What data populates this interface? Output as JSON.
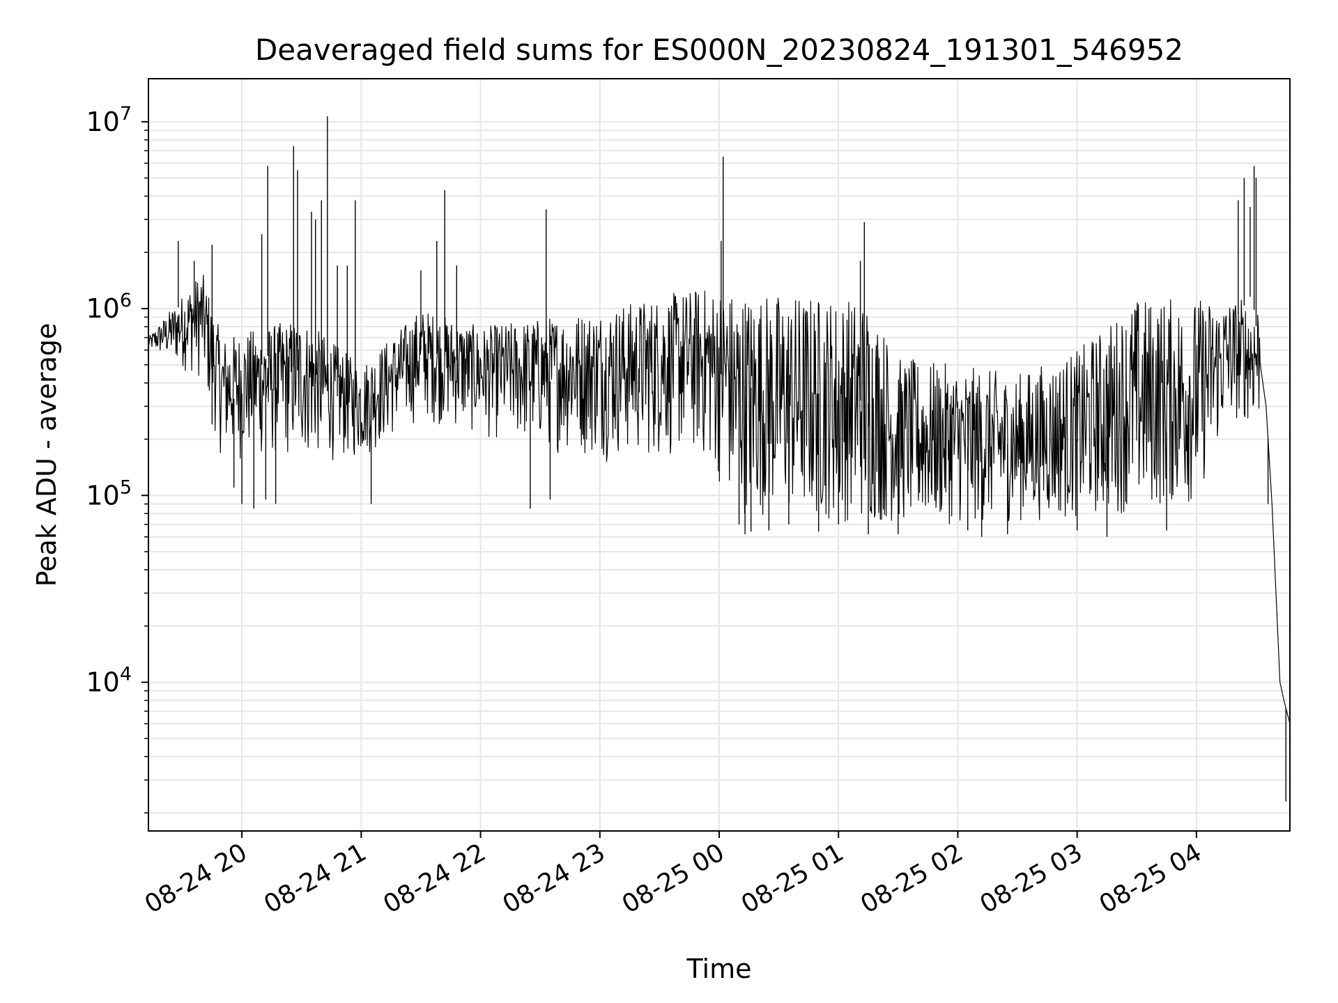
{
  "chart_data": {
    "type": "line",
    "title": "Deaveraged field sums for ES000N_20230824_191301_546952",
    "xlabel": "Time",
    "ylabel": "Peak ADU - average",
    "yscale": "log",
    "ylim": [
      1600,
      17000000
    ],
    "xlim": [
      "2023-08-24 19:13",
      "2023-08-25 04:47"
    ],
    "grid": true,
    "line_color": "#000000",
    "grid_color": "#e6e6e6",
    "x_ticks": [
      {
        "time": "2023-08-24 20:00",
        "label": "08-24 20"
      },
      {
        "time": "2023-08-24 21:00",
        "label": "08-24 21"
      },
      {
        "time": "2023-08-24 22:00",
        "label": "08-24 22"
      },
      {
        "time": "2023-08-24 23:00",
        "label": "08-24 23"
      },
      {
        "time": "2023-08-25 00:00",
        "label": "08-25 00"
      },
      {
        "time": "2023-08-25 01:00",
        "label": "08-25 01"
      },
      {
        "time": "2023-08-25 02:00",
        "label": "08-25 02"
      },
      {
        "time": "2023-08-25 03:00",
        "label": "08-25 03"
      },
      {
        "time": "2023-08-25 04:00",
        "label": "08-25 04"
      }
    ],
    "y_ticks": [
      {
        "value": 10000,
        "base": "10",
        "exp": "4"
      },
      {
        "value": 100000,
        "base": "10",
        "exp": "5"
      },
      {
        "value": 1000000,
        "base": "10",
        "exp": "6"
      },
      {
        "value": 10000000,
        "base": "10",
        "exp": "7"
      }
    ],
    "series": [
      {
        "values": [
          [
            "2023-08-24 19:13",
            650000
          ],
          [
            "2023-08-24 19:20",
            720000
          ],
          [
            "2023-08-24 19:25",
            900000
          ],
          [
            "2023-08-24 19:30",
            1100000
          ],
          [
            "2023-08-24 19:35",
            1000000
          ],
          [
            "2023-08-24 19:40",
            800000
          ],
          [
            "2023-08-24 19:45",
            500000
          ],
          [
            "2023-08-24 19:50",
            300000
          ],
          [
            "2023-08-24 20:00",
            350000
          ],
          [
            "2023-08-24 20:15",
            600000
          ],
          [
            "2023-08-24 20:30",
            450000
          ],
          [
            "2023-08-24 20:45",
            350000
          ],
          [
            "2023-08-24 21:00",
            300000
          ],
          [
            "2023-08-24 21:15",
            450000
          ],
          [
            "2023-08-24 21:30",
            600000
          ],
          [
            "2023-08-24 21:45",
            550000
          ],
          [
            "2023-08-24 22:00",
            450000
          ],
          [
            "2023-08-24 22:30",
            400000
          ],
          [
            "2023-08-24 23:00",
            450000
          ],
          [
            "2023-08-24 23:30",
            550000
          ],
          [
            "2023-08-24 23:50",
            600000
          ],
          [
            "2023-08-25 00:05",
            400000
          ],
          [
            "2023-08-25 00:30",
            350000
          ],
          [
            "2023-08-25 01:00",
            350000
          ],
          [
            "2023-08-25 01:20",
            300000
          ],
          [
            "2023-08-25 01:30",
            200000
          ],
          [
            "2023-08-25 02:00",
            180000
          ],
          [
            "2023-08-25 02:30",
            190000
          ],
          [
            "2023-08-25 03:00",
            200000
          ],
          [
            "2023-08-25 03:30",
            210000
          ],
          [
            "2023-08-25 04:00",
            230000
          ],
          [
            "2023-08-25 04:15",
            350000
          ],
          [
            "2023-08-25 04:20",
            900000
          ],
          [
            "2023-08-25 04:28",
            1200000
          ],
          [
            "2023-08-25 04:35",
            300000
          ],
          [
            "2023-08-25 04:38",
            90000
          ],
          [
            "2023-08-25 04:40",
            30000
          ],
          [
            "2023-08-25 04:42",
            10000
          ],
          [
            "2023-08-25 04:44",
            8000
          ],
          [
            "2023-08-25 04:47",
            6000
          ]
        ],
        "band_high": [
          [
            "2023-08-24 19:13",
            700000
          ],
          [
            "2023-08-24 19:40",
            1600000
          ],
          [
            "2023-08-24 19:50",
            700000
          ],
          [
            "2023-08-24 20:30",
            900000
          ],
          [
            "2023-08-24 21:00",
            500000
          ],
          [
            "2023-08-24 21:30",
            1000000
          ],
          [
            "2023-08-24 22:00",
            800000
          ],
          [
            "2023-08-24 23:00",
            1000000
          ],
          [
            "2023-08-24 23:50",
            1300000
          ],
          [
            "2023-08-25 01:15",
            1150000
          ],
          [
            "2023-08-25 01:30",
            550000
          ],
          [
            "2023-08-25 02:30",
            450000
          ],
          [
            "2023-08-25 03:00",
            600000
          ],
          [
            "2023-08-25 03:30",
            1150000
          ],
          [
            "2023-08-25 04:15",
            1150000
          ]
        ],
        "band_low": [
          [
            "2023-08-24 19:13",
            600000
          ],
          [
            "2023-08-24 19:40",
            400000
          ],
          [
            "2023-08-24 19:50",
            150000
          ],
          [
            "2023-08-24 20:30",
            150000
          ],
          [
            "2023-08-24 21:00",
            150000
          ],
          [
            "2023-08-24 21:30",
            250000
          ],
          [
            "2023-08-24 22:00",
            200000
          ],
          [
            "2023-08-24 23:00",
            150000
          ],
          [
            "2023-08-24 23:50",
            150000
          ],
          [
            "2023-08-25 00:10",
            80000
          ],
          [
            "2023-08-25 01:15",
            70000
          ],
          [
            "2023-08-25 02:00",
            70000
          ],
          [
            "2023-08-25 03:00",
            75000
          ],
          [
            "2023-08-25 04:00",
            90000
          ],
          [
            "2023-08-25 04:15",
            250000
          ]
        ],
        "spikes": [
          [
            "2023-08-24 19:28",
            2300000
          ],
          [
            "2023-08-24 19:36",
            1800000
          ],
          [
            "2023-08-24 19:45",
            2200000
          ],
          [
            "2023-08-24 20:10",
            2500000
          ],
          [
            "2023-08-24 20:13",
            5800000
          ],
          [
            "2023-08-24 20:26",
            7400000
          ],
          [
            "2023-08-24 20:28",
            5500000
          ],
          [
            "2023-08-24 20:35",
            3300000
          ],
          [
            "2023-08-24 20:37",
            3000000
          ],
          [
            "2023-08-24 20:40",
            3800000
          ],
          [
            "2023-08-24 20:43",
            10700000
          ],
          [
            "2023-08-24 20:48",
            1700000
          ],
          [
            "2023-08-24 20:53",
            1700000
          ],
          [
            "2023-08-24 20:57",
            3800000
          ],
          [
            "2023-08-24 21:30",
            1600000
          ],
          [
            "2023-08-24 21:38",
            2300000
          ],
          [
            "2023-08-24 21:42",
            4300000
          ],
          [
            "2023-08-24 21:48",
            1700000
          ],
          [
            "2023-08-24 22:33",
            3400000
          ],
          [
            "2023-08-25 00:01",
            2300000
          ],
          [
            "2023-08-25 00:02",
            6500000
          ],
          [
            "2023-08-25 01:11",
            1800000
          ],
          [
            "2023-08-25 01:13",
            2900000
          ],
          [
            "2023-08-25 04:21",
            3800000
          ],
          [
            "2023-08-25 04:24",
            5000000
          ],
          [
            "2023-08-25 04:27",
            3500000
          ],
          [
            "2023-08-25 04:29",
            5800000
          ],
          [
            "2023-08-25 04:30",
            5000000
          ]
        ],
        "dips": [
          [
            "2023-08-24 19:35",
            700000
          ],
          [
            "2023-08-24 19:45",
            240000
          ],
          [
            "2023-08-24 19:56",
            110000
          ],
          [
            "2023-08-24 20:00",
            90000
          ],
          [
            "2023-08-24 20:06",
            85000
          ],
          [
            "2023-08-24 20:12",
            95000
          ],
          [
            "2023-08-24 20:17",
            90000
          ],
          [
            "2023-08-24 21:05",
            90000
          ],
          [
            "2023-08-24 22:25",
            85000
          ],
          [
            "2023-08-24 22:35",
            95000
          ],
          [
            "2023-08-25 00:10",
            70000
          ],
          [
            "2023-08-25 00:13",
            62000
          ],
          [
            "2023-08-25 00:16",
            64000
          ],
          [
            "2023-08-25 00:25",
            65000
          ],
          [
            "2023-08-25 00:35",
            70000
          ],
          [
            "2023-08-25 00:50",
            64000
          ],
          [
            "2023-08-25 01:00",
            70000
          ],
          [
            "2023-08-25 01:15",
            62000
          ],
          [
            "2023-08-25 01:30",
            62000
          ],
          [
            "2023-08-25 02:05",
            65000
          ],
          [
            "2023-08-25 02:12",
            60000
          ],
          [
            "2023-08-25 02:25",
            62000
          ],
          [
            "2023-08-25 03:00",
            65000
          ],
          [
            "2023-08-25 03:15",
            60000
          ],
          [
            "2023-08-25 03:45",
            65000
          ],
          [
            "2023-08-25 04:36",
            90000
          ],
          [
            "2023-08-25 04:45",
            2300
          ]
        ]
      }
    ]
  }
}
